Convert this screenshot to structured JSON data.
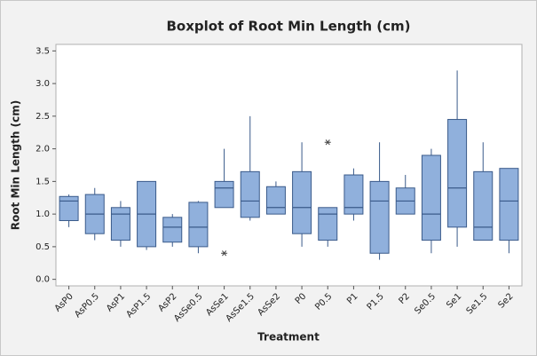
{
  "chart_data": {
    "type": "box",
    "title": "Boxplot of Root Min Length (cm)",
    "x_label": "Treatment",
    "y_label": "Root Min Length (cm)",
    "categories": [
      "AsP0",
      "AsP0.5",
      "AsP1",
      "AsP1.5",
      "AsP2",
      "AsSe0.5",
      "AsSe1",
      "AsSe1.5",
      "AsSe2",
      "P0",
      "P0.5",
      "P1",
      "P1.5",
      "P2",
      "Se0.5",
      "Se1",
      "Se1.5",
      "Se2"
    ],
    "boxes": [
      {
        "min": 0.8,
        "q1": 0.9,
        "median": 1.2,
        "q3": 1.27,
        "max": 1.3
      },
      {
        "min": 0.6,
        "q1": 0.7,
        "median": 1.0,
        "q3": 1.3,
        "max": 1.4
      },
      {
        "min": 0.5,
        "q1": 0.6,
        "median": 1.0,
        "q3": 1.1,
        "max": 1.2
      },
      {
        "min": 0.45,
        "q1": 0.5,
        "median": 1.0,
        "q3": 1.5,
        "max": 1.5
      },
      {
        "min": 0.5,
        "q1": 0.57,
        "median": 0.8,
        "q3": 0.95,
        "max": 1.0
      },
      {
        "min": 0.4,
        "q1": 0.5,
        "median": 0.8,
        "q3": 1.18,
        "max": 1.2
      },
      {
        "min": 1.1,
        "q1": 1.1,
        "median": 1.4,
        "q3": 1.5,
        "max": 2.0,
        "outliers": [
          0.4
        ]
      },
      {
        "min": 0.9,
        "q1": 0.95,
        "median": 1.2,
        "q3": 1.65,
        "max": 2.5
      },
      {
        "min": 1.0,
        "q1": 1.0,
        "median": 1.1,
        "q3": 1.42,
        "max": 1.5
      },
      {
        "min": 0.5,
        "q1": 0.7,
        "median": 1.1,
        "q3": 1.65,
        "max": 2.1
      },
      {
        "min": 0.5,
        "q1": 0.6,
        "median": 1.0,
        "q3": 1.1,
        "max": 1.1,
        "outliers": [
          2.1
        ]
      },
      {
        "min": 0.9,
        "q1": 1.0,
        "median": 1.1,
        "q3": 1.6,
        "max": 1.7
      },
      {
        "min": 0.3,
        "q1": 0.4,
        "median": 1.2,
        "q3": 1.5,
        "max": 2.1
      },
      {
        "min": 1.0,
        "q1": 1.0,
        "median": 1.2,
        "q3": 1.4,
        "max": 1.6
      },
      {
        "min": 0.4,
        "q1": 0.6,
        "median": 1.0,
        "q3": 1.9,
        "max": 2.0
      },
      {
        "min": 0.5,
        "q1": 0.8,
        "median": 1.4,
        "q3": 2.45,
        "max": 3.2
      },
      {
        "min": 0.6,
        "q1": 0.6,
        "median": 0.8,
        "q3": 1.65,
        "max": 2.1
      },
      {
        "min": 0.4,
        "q1": 0.6,
        "median": 1.2,
        "q3": 1.7,
        "max": 1.7
      }
    ],
    "color": "#90b0dc",
    "edge_color": "#3a5a8a",
    "ylim": [
      -0.1,
      3.6
    ],
    "yticks": [
      {
        "value": 0,
        "label": "0.0"
      },
      0.5,
      {
        "value": 1,
        "label": "1.0"
      },
      1.5,
      {
        "value": 2,
        "label": "2.0"
      },
      2.5,
      {
        "value": 3,
        "label": "3.0"
      },
      3.5
    ]
  }
}
